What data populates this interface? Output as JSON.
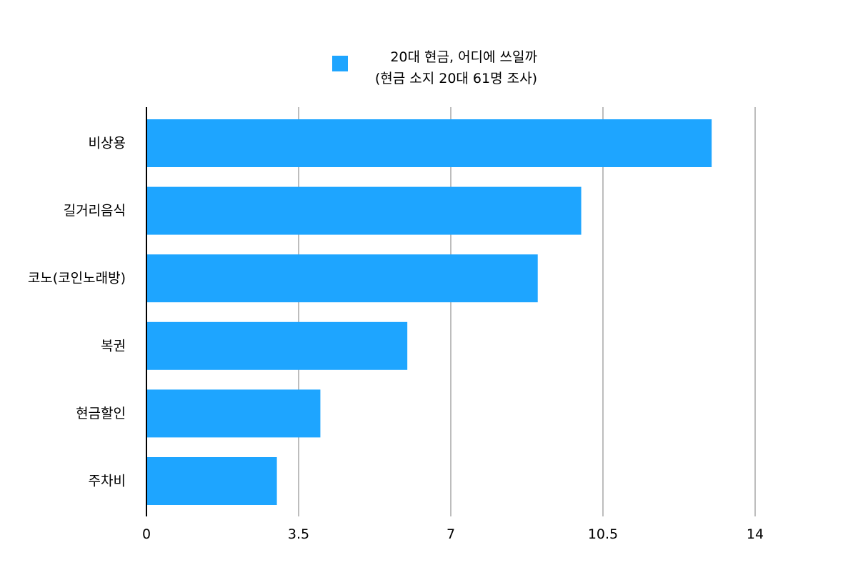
{
  "chart_data": {
    "type": "bar",
    "orientation": "horizontal",
    "categories": [
      "비상용",
      "길거리음식",
      "코노(코인노래방)",
      "복권",
      "현금할인",
      "주차비"
    ],
    "series": [
      {
        "name": "20대 현금, 어디에 쓰일까\n(현금 소지 20대 61명 조사)",
        "name_lines": [
          "20대 현금, 어디에 쓰일까",
          "(현금 소지 20대 61명 조사)"
        ],
        "values": [
          13,
          10,
          9,
          6,
          4,
          3
        ],
        "color": "#1EA5FF"
      }
    ],
    "x_ticks": [
      0,
      3.5,
      7,
      10.5,
      14
    ],
    "x_tick_labels": [
      "0",
      "3.5",
      "7",
      "10.5",
      "14"
    ],
    "xlim": [
      0,
      14
    ],
    "grid": true,
    "gridline_color": "#BDBDBD",
    "axis_color": "#000000",
    "legend_position": "top-center"
  }
}
